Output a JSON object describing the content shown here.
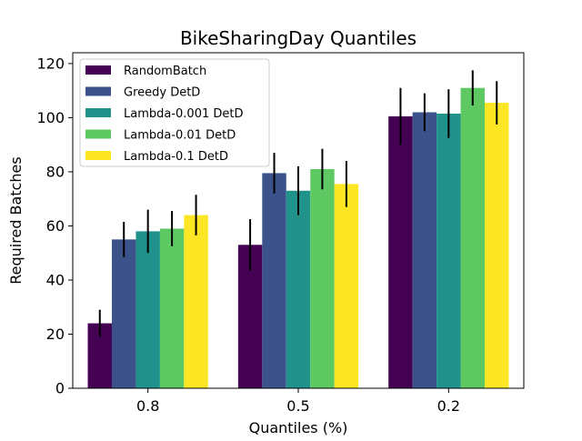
{
  "chart_data": {
    "type": "bar",
    "title": "BikeSharingDay Quantiles",
    "xlabel": "Quantiles (%)",
    "ylabel": "Required Batches",
    "categories": [
      "0.8",
      "0.5",
      "0.2"
    ],
    "ylim": [
      0,
      124
    ],
    "yticks": [
      0,
      20,
      40,
      60,
      80,
      100,
      120
    ],
    "legend_position": "top-left",
    "grid": false,
    "series": [
      {
        "name": "RandomBatch",
        "color": "#440154",
        "values": [
          24,
          53,
          100.5
        ],
        "errors": [
          5,
          9.5,
          10.5
        ]
      },
      {
        "name": "Greedy DetD",
        "color": "#3b528b",
        "values": [
          55,
          79.5,
          102
        ],
        "errors": [
          6.5,
          7.5,
          7
        ]
      },
      {
        "name": "Lambda-0.001 DetD",
        "color": "#21918c",
        "values": [
          58,
          73,
          101.5
        ],
        "errors": [
          8,
          9,
          9
        ]
      },
      {
        "name": "Lambda-0.01 DetD",
        "color": "#5ec962",
        "values": [
          59,
          81,
          111
        ],
        "errors": [
          6.5,
          7.5,
          6.5
        ]
      },
      {
        "name": "Lambda-0.1 DetD",
        "color": "#fde725",
        "values": [
          64,
          75.5,
          105.5
        ],
        "errors": [
          7.5,
          8.5,
          8
        ]
      }
    ]
  }
}
